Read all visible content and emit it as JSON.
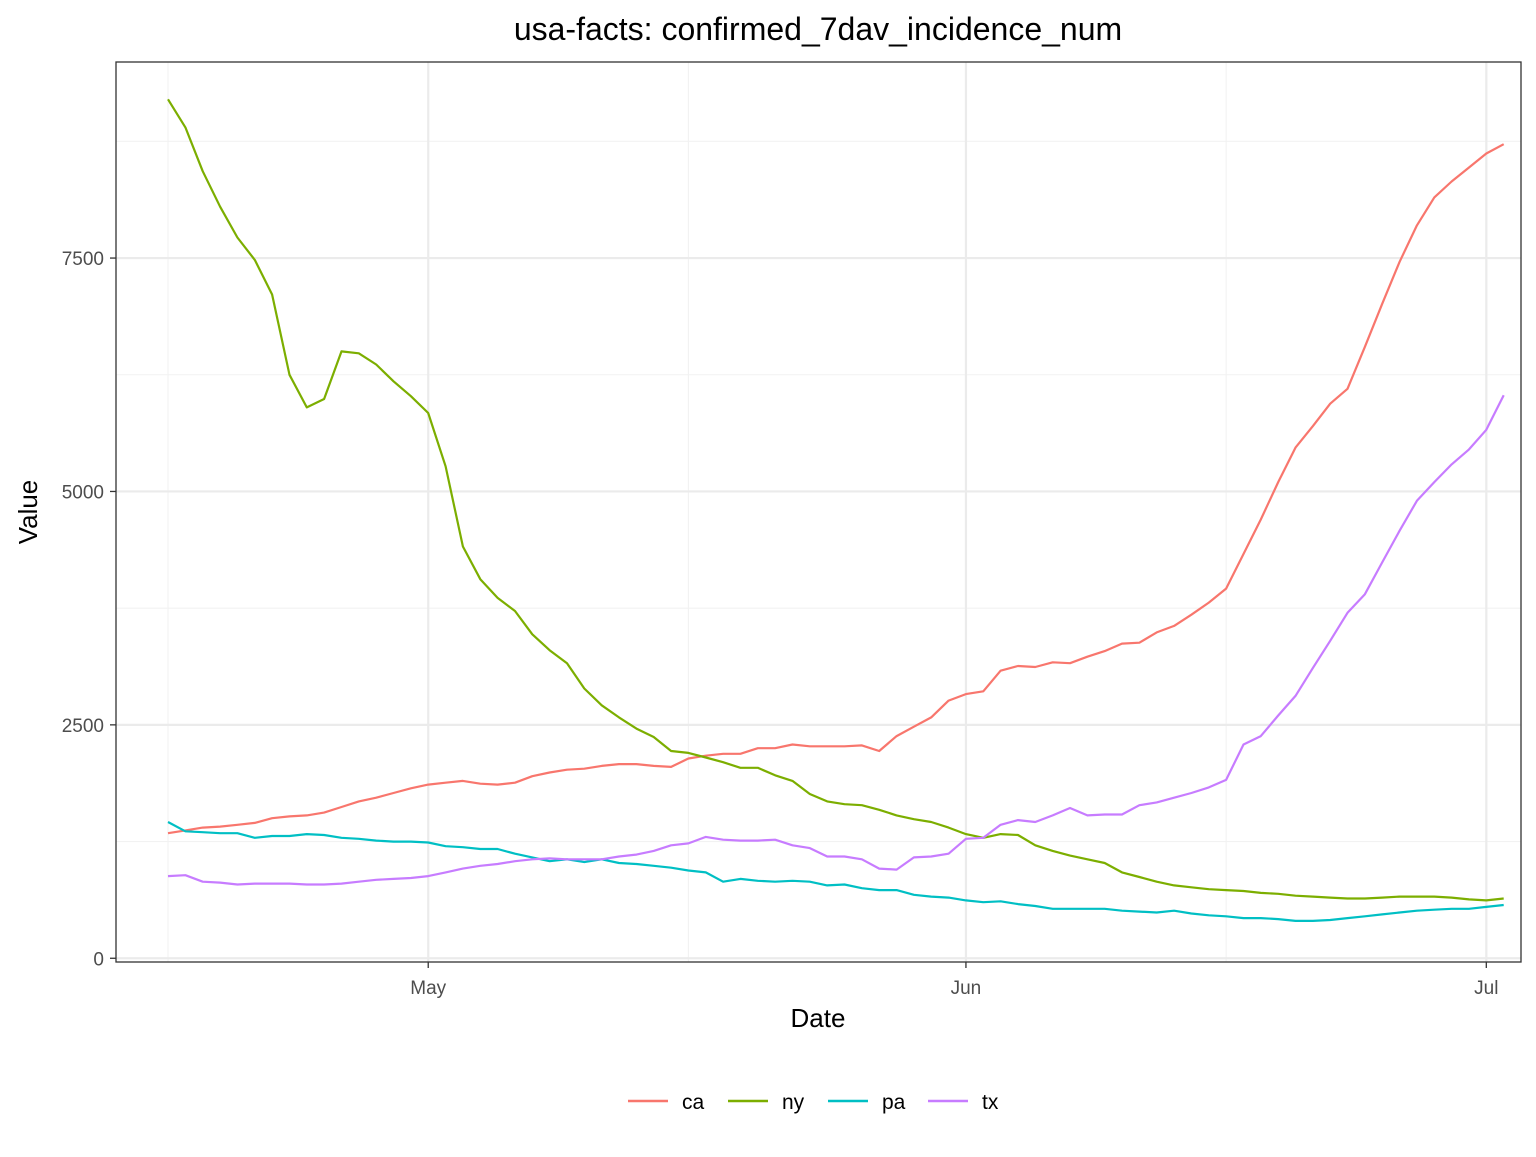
{
  "chart_data": {
    "type": "line",
    "title": "usa-facts: confirmed_7dav_incidence_num",
    "xlabel": "Date",
    "ylabel": "Value",
    "x_type": "date",
    "x_start": "2020-04-16",
    "x_end": "2020-07-01",
    "xlim": [
      "2020-04-13",
      "2020-07-03"
    ],
    "ylim": [
      -40,
      9600
    ],
    "x_ticks": [
      {
        "date": "2020-05-01",
        "label": "May"
      },
      {
        "date": "2020-06-01",
        "label": "Jun"
      },
      {
        "date": "2020-07-01",
        "label": "Jul"
      }
    ],
    "x_minor_ticks": [
      "2020-04-16",
      "2020-05-16",
      "2020-06-16"
    ],
    "y_ticks": [
      0,
      2500,
      5000,
      7500
    ],
    "y_minor_ticks": [
      1250,
      3750,
      6250,
      8750
    ],
    "grid": true,
    "legend_position": "bottom",
    "series": [
      {
        "name": "ca",
        "color": "#F8766D",
        "values": [
          1340,
          1370,
          1400,
          1410,
          1430,
          1450,
          1500,
          1520,
          1530,
          1560,
          1620,
          1680,
          1720,
          1770,
          1820,
          1860,
          1880,
          1900,
          1870,
          1860,
          1880,
          1950,
          1990,
          2020,
          2030,
          2060,
          2080,
          2080,
          2060,
          2050,
          2140,
          2170,
          2190,
          2190,
          2250,
          2250,
          2290,
          2270,
          2270,
          2270,
          2280,
          2220,
          2380,
          2480,
          2580,
          2760,
          2830,
          2860,
          3080,
          3130,
          3120,
          3170,
          3160,
          3230,
          3290,
          3370,
          3380,
          3490,
          3560,
          3680,
          3810,
          3960,
          4330,
          4700,
          5100,
          5470,
          5700,
          5940,
          6100,
          6550,
          7010,
          7460,
          7850,
          8150,
          8320,
          8470,
          8620,
          8720
        ]
      },
      {
        "name": "ny",
        "color": "#7CAE00",
        "values": [
          9200,
          8900,
          8430,
          8050,
          7720,
          7480,
          7110,
          6250,
          5900,
          5990,
          6500,
          6480,
          6360,
          6180,
          6020,
          5840,
          5270,
          4410,
          4060,
          3860,
          3720,
          3470,
          3300,
          3160,
          2890,
          2710,
          2580,
          2460,
          2370,
          2220,
          2200,
          2150,
          2100,
          2040,
          2040,
          1960,
          1900,
          1760,
          1680,
          1650,
          1640,
          1590,
          1530,
          1490,
          1460,
          1400,
          1330,
          1290,
          1330,
          1320,
          1210,
          1150,
          1100,
          1060,
          1020,
          920,
          870,
          820,
          780,
          760,
          740,
          730,
          720,
          700,
          690,
          670,
          660,
          650,
          640,
          640,
          650,
          660,
          660,
          660,
          650,
          630,
          620,
          640
        ]
      },
      {
        "name": "pa",
        "color": "#00BFC4",
        "values": [
          1460,
          1360,
          1350,
          1340,
          1340,
          1290,
          1310,
          1310,
          1330,
          1320,
          1290,
          1280,
          1260,
          1250,
          1250,
          1240,
          1200,
          1190,
          1170,
          1170,
          1120,
          1080,
          1040,
          1060,
          1030,
          1060,
          1020,
          1010,
          990,
          970,
          940,
          920,
          820,
          850,
          830,
          820,
          830,
          820,
          780,
          790,
          750,
          730,
          730,
          680,
          660,
          650,
          620,
          600,
          610,
          580,
          560,
          530,
          530,
          530,
          530,
          510,
          500,
          490,
          510,
          480,
          460,
          450,
          430,
          430,
          420,
          400,
          400,
          410,
          430,
          450,
          470,
          490,
          510,
          520,
          530,
          530,
          550,
          570
        ]
      },
      {
        "name": "tx",
        "color": "#C77CFF",
        "values": [
          880,
          890,
          820,
          810,
          790,
          800,
          800,
          800,
          790,
          790,
          800,
          820,
          840,
          850,
          860,
          880,
          920,
          960,
          990,
          1010,
          1040,
          1060,
          1070,
          1060,
          1060,
          1060,
          1090,
          1110,
          1150,
          1210,
          1230,
          1300,
          1270,
          1260,
          1260,
          1270,
          1210,
          1180,
          1090,
          1090,
          1060,
          960,
          950,
          1080,
          1090,
          1120,
          1280,
          1290,
          1430,
          1480,
          1460,
          1530,
          1610,
          1530,
          1540,
          1540,
          1640,
          1670,
          1720,
          1770,
          1830,
          1910,
          2290,
          2380,
          2600,
          2810,
          3110,
          3400,
          3700,
          3900,
          4240,
          4580,
          4900,
          5100,
          5290,
          5450,
          5660,
          6030
        ]
      }
    ]
  }
}
